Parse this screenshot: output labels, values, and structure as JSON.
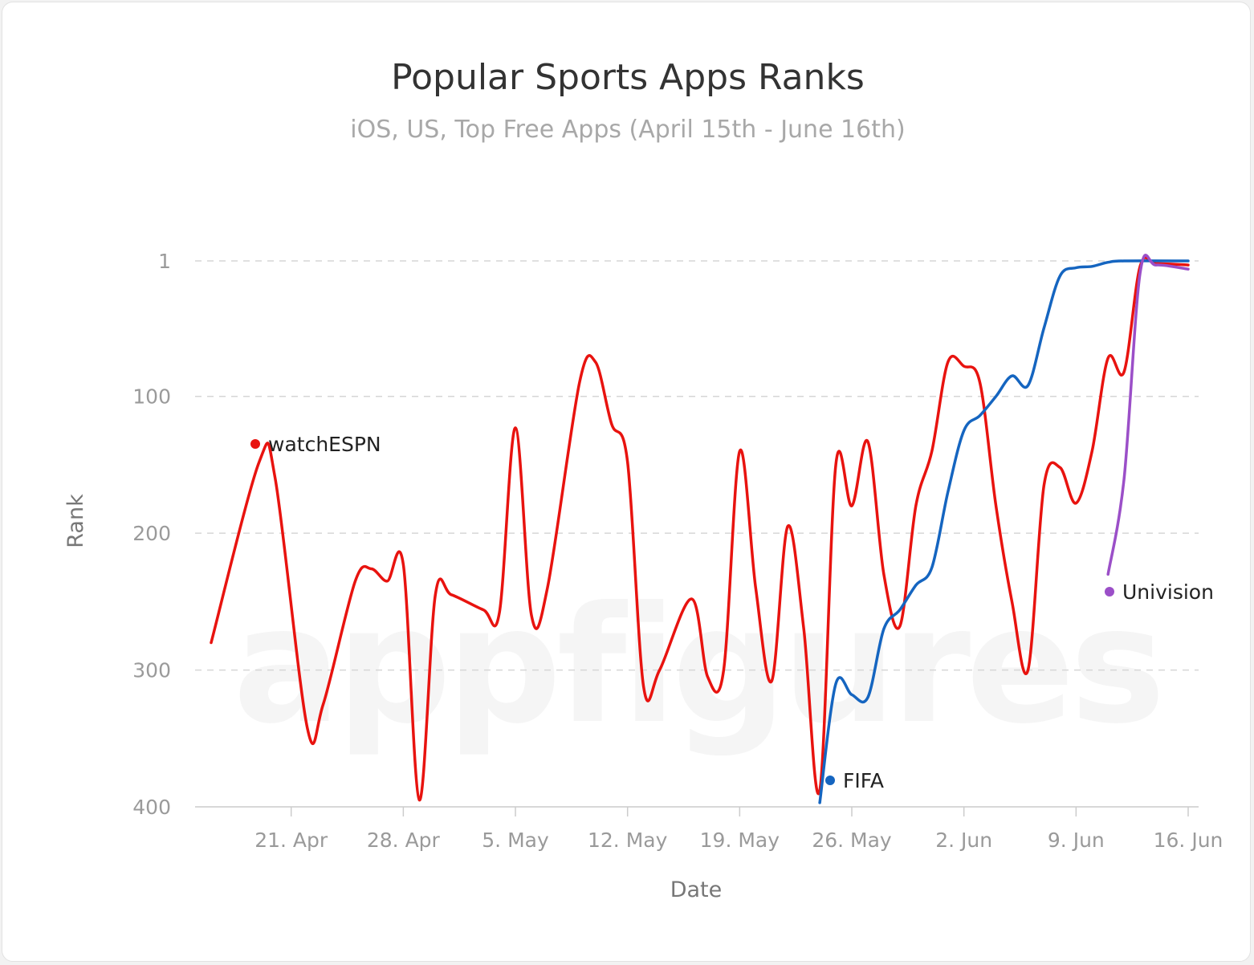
{
  "chart_data": {
    "type": "line",
    "title": "Popular Sports Apps Ranks",
    "subtitle": "iOS, US, Top Free Apps (April 15th - June 16th)",
    "xlabel": "Date",
    "ylabel": "Rank",
    "watermark": "appfigures",
    "y_reversed": true,
    "ylim": [
      1,
      400
    ],
    "yticks": [
      {
        "value": 1,
        "label": "1"
      },
      {
        "value": 100,
        "label": "100"
      },
      {
        "value": 200,
        "label": "200"
      },
      {
        "value": 300,
        "label": "300"
      },
      {
        "value": 400,
        "label": "400"
      }
    ],
    "xlim": [
      "2014-04-15",
      "2014-06-16"
    ],
    "xticks": [
      {
        "date": "2014-04-21",
        "label": "21. Apr"
      },
      {
        "date": "2014-04-28",
        "label": "28. Apr"
      },
      {
        "date": "2014-05-05",
        "label": "5. May"
      },
      {
        "date": "2014-05-12",
        "label": "12. May"
      },
      {
        "date": "2014-05-19",
        "label": "19. May"
      },
      {
        "date": "2014-05-26",
        "label": "26. May"
      },
      {
        "date": "2014-06-02",
        "label": "2. Jun"
      },
      {
        "date": "2014-06-09",
        "label": "9. Jun"
      },
      {
        "date": "2014-06-16",
        "label": "16. Jun"
      }
    ],
    "grid": true,
    "series": [
      {
        "name": "watchESPN",
        "color": "#e8130f",
        "points": [
          [
            "2014-04-16",
            280
          ],
          [
            "2014-04-19",
            148
          ],
          [
            "2014-04-20",
            160
          ],
          [
            "2014-04-22",
            342
          ],
          [
            "2014-04-23",
            325
          ],
          [
            "2014-04-25",
            235
          ],
          [
            "2014-04-26",
            226
          ],
          [
            "2014-04-27",
            235
          ],
          [
            "2014-04-28",
            223
          ],
          [
            "2014-04-29",
            395
          ],
          [
            "2014-04-30",
            245
          ],
          [
            "2014-05-01",
            245
          ],
          [
            "2014-05-03",
            256
          ],
          [
            "2014-05-04",
            258
          ],
          [
            "2014-05-05",
            123
          ],
          [
            "2014-05-06",
            260
          ],
          [
            "2014-05-07",
            240
          ],
          [
            "2014-05-09",
            90
          ],
          [
            "2014-05-10",
            75
          ],
          [
            "2014-05-11",
            120
          ],
          [
            "2014-05-12",
            148
          ],
          [
            "2014-05-13",
            312
          ],
          [
            "2014-05-14",
            300
          ],
          [
            "2014-05-16",
            248
          ],
          [
            "2014-05-17",
            305
          ],
          [
            "2014-05-18",
            300
          ],
          [
            "2014-05-19",
            140
          ],
          [
            "2014-05-20",
            240
          ],
          [
            "2014-05-21",
            308
          ],
          [
            "2014-05-22",
            195
          ],
          [
            "2014-05-23",
            270
          ],
          [
            "2014-05-24",
            388
          ],
          [
            "2014-05-25",
            150
          ],
          [
            "2014-05-26",
            180
          ],
          [
            "2014-05-27",
            133
          ],
          [
            "2014-05-28",
            230
          ],
          [
            "2014-05-29",
            268
          ],
          [
            "2014-05-30",
            180
          ],
          [
            "2014-05-31",
            140
          ],
          [
            "2014-06-01",
            75
          ],
          [
            "2014-06-02",
            78
          ],
          [
            "2014-06-03",
            90
          ],
          [
            "2014-06-04",
            180
          ],
          [
            "2014-06-05",
            250
          ],
          [
            "2014-06-06",
            300
          ],
          [
            "2014-06-07",
            165
          ],
          [
            "2014-06-08",
            152
          ],
          [
            "2014-06-09",
            178
          ],
          [
            "2014-06-10",
            140
          ],
          [
            "2014-06-11",
            72
          ],
          [
            "2014-06-12",
            82
          ],
          [
            "2014-06-13",
            5
          ],
          [
            "2014-06-14",
            3
          ],
          [
            "2014-06-16",
            4
          ]
        ]
      },
      {
        "name": "FIFA",
        "color": "#1565c0",
        "points": [
          [
            "2014-05-24",
            397
          ],
          [
            "2014-05-25",
            310
          ],
          [
            "2014-05-26",
            318
          ],
          [
            "2014-05-27",
            320
          ],
          [
            "2014-05-28",
            270
          ],
          [
            "2014-05-29",
            256
          ],
          [
            "2014-05-30",
            238
          ],
          [
            "2014-05-31",
            225
          ],
          [
            "2014-06-01",
            170
          ],
          [
            "2014-06-02",
            125
          ],
          [
            "2014-06-03",
            114
          ],
          [
            "2014-06-04",
            100
          ],
          [
            "2014-06-05",
            85
          ],
          [
            "2014-06-06",
            92
          ],
          [
            "2014-06-07",
            50
          ],
          [
            "2014-06-08",
            12
          ],
          [
            "2014-06-09",
            6
          ],
          [
            "2014-06-10",
            5
          ],
          [
            "2014-06-11",
            2
          ],
          [
            "2014-06-12",
            1
          ],
          [
            "2014-06-16",
            1
          ]
        ]
      },
      {
        "name": "Univision",
        "color": "#9b4fc8",
        "points": [
          [
            "2014-06-11",
            230
          ],
          [
            "2014-06-12",
            160
          ],
          [
            "2014-06-13",
            10
          ],
          [
            "2014-06-14",
            4
          ],
          [
            "2014-06-16",
            7
          ]
        ]
      }
    ]
  }
}
